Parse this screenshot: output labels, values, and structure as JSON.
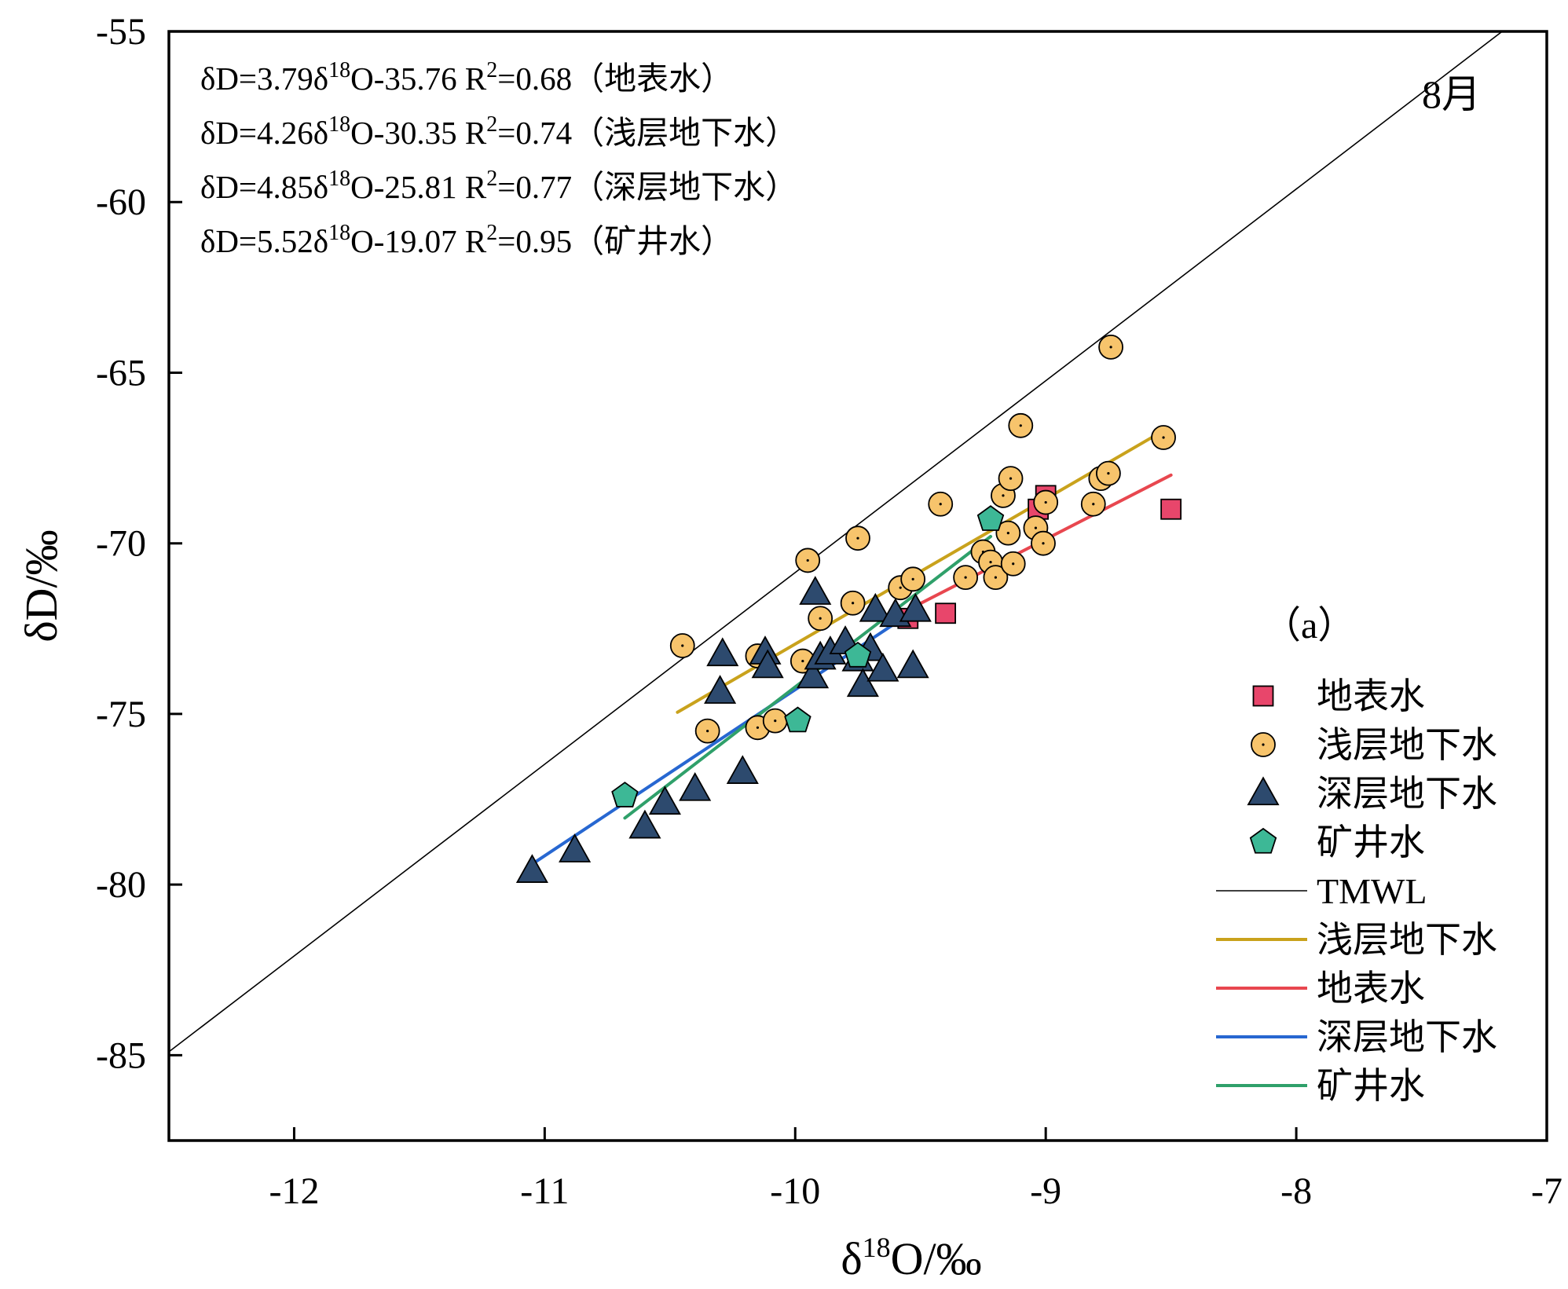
{
  "chart_data": {
    "type": "scatter",
    "title": "8月",
    "panel_label": "（a）",
    "xlabel": {
      "main": "δ",
      "sup": "18",
      "rest": "O/‰"
    },
    "ylabel": "δD/‰",
    "xlim": [
      -12.5,
      -7
    ],
    "ylim": [
      -87.5,
      -55
    ],
    "x_ticks": [
      -12,
      -11,
      -10,
      -9,
      -8,
      -7
    ],
    "y_ticks": [
      -55,
      -60,
      -65,
      -70,
      -75,
      -80,
      -85
    ],
    "x_tick_labels": [
      "-12",
      "-11",
      "-10",
      "-9",
      "-8",
      "-7"
    ],
    "y_tick_labels": [
      "-55",
      "-60",
      "-65",
      "-70",
      "-75",
      "-80",
      "-85"
    ],
    "equations": [
      {
        "pre": "δD=3.79δ",
        "sup1": "18",
        "mid": "O-35.76  R",
        "sup2": "2",
        "post": "=0.68（地表水）"
      },
      {
        "pre": "δD=4.26δ",
        "sup1": "18",
        "mid": "O-30.35  R",
        "sup2": "2",
        "post": "=0.74（浅层地下水）"
      },
      {
        "pre": "δD=4.85δ",
        "sup1": "18",
        "mid": "O-25.81  R",
        "sup2": "2",
        "post": "=0.77（深层地下水）"
      },
      {
        "pre": "δD=5.52δ",
        "sup1": "18",
        "mid": "O-19.07  R",
        "sup2": "2",
        "post": "=0.95（矿井水）"
      }
    ],
    "series": [
      {
        "name": "地表水",
        "marker": "square",
        "color": "#e8466b",
        "points": [
          [
            -9.55,
            -72.2
          ],
          [
            -9.4,
            -72.05
          ],
          [
            -9.03,
            -69.0
          ],
          [
            -9.0,
            -68.6
          ],
          [
            -8.5,
            -69.0
          ]
        ]
      },
      {
        "name": "浅层地下水",
        "marker": "circle",
        "color": "#f7c46c",
        "points": [
          [
            -10.45,
            -73.0
          ],
          [
            -10.35,
            -75.5
          ],
          [
            -10.15,
            -73.3
          ],
          [
            -10.15,
            -75.4
          ],
          [
            -10.08,
            -75.2
          ],
          [
            -9.97,
            -73.45
          ],
          [
            -9.95,
            -70.5
          ],
          [
            -9.9,
            -72.2
          ],
          [
            -9.77,
            -71.75
          ],
          [
            -9.75,
            -69.85
          ],
          [
            -9.58,
            -71.3
          ],
          [
            -9.53,
            -71.05
          ],
          [
            -9.42,
            -68.85
          ],
          [
            -9.32,
            -71.0
          ],
          [
            -9.25,
            -70.25
          ],
          [
            -9.22,
            -70.55
          ],
          [
            -9.2,
            -71.0
          ],
          [
            -9.17,
            -68.6
          ],
          [
            -9.15,
            -69.7
          ],
          [
            -9.14,
            -68.1
          ],
          [
            -9.13,
            -70.6
          ],
          [
            -9.1,
            -66.55
          ],
          [
            -9.04,
            -69.55
          ],
          [
            -9.01,
            -70.0
          ],
          [
            -9.0,
            -68.8
          ],
          [
            -8.81,
            -68.85
          ],
          [
            -8.78,
            -68.1
          ],
          [
            -8.75,
            -67.95
          ],
          [
            -8.74,
            -64.25
          ],
          [
            -8.53,
            -66.9
          ]
        ]
      },
      {
        "name": "深层地下水",
        "marker": "triangle",
        "color": "#2d4a6e",
        "points": [
          [
            -11.05,
            -79.6
          ],
          [
            -10.88,
            -79.0
          ],
          [
            -10.6,
            -78.3
          ],
          [
            -10.52,
            -77.6
          ],
          [
            -10.4,
            -77.2
          ],
          [
            -10.3,
            -74.35
          ],
          [
            -10.29,
            -73.25
          ],
          [
            -10.21,
            -76.7
          ],
          [
            -10.12,
            -73.2
          ],
          [
            -10.11,
            -73.6
          ],
          [
            -9.93,
            -73.9
          ],
          [
            -9.92,
            -71.45
          ],
          [
            -9.9,
            -73.35
          ],
          [
            -9.86,
            -73.2
          ],
          [
            -9.8,
            -72.9
          ],
          [
            -9.75,
            -73.4
          ],
          [
            -9.73,
            -74.15
          ],
          [
            -9.7,
            -73.1
          ],
          [
            -9.68,
            -71.95
          ],
          [
            -9.65,
            -73.7
          ],
          [
            -9.6,
            -72.1
          ],
          [
            -9.53,
            -73.6
          ],
          [
            -9.52,
            -71.95
          ]
        ]
      },
      {
        "name": "矿井水",
        "marker": "pentagon",
        "color": "#3db896",
        "points": [
          [
            -10.68,
            -77.4
          ],
          [
            -9.99,
            -75.2
          ],
          [
            -9.75,
            -73.3
          ],
          [
            -9.22,
            -69.3
          ]
        ]
      }
    ],
    "lines": [
      {
        "name": "TMWL",
        "color": "#000000",
        "width": 1.6,
        "x": [
          -12.5,
          -7.0
        ],
        "y": [
          -84.9,
          -54.0
        ]
      },
      {
        "name": "浅层地下水",
        "color": "#c9a21c",
        "width": 4,
        "x": [
          -10.47,
          -8.53
        ],
        "y": [
          -74.95,
          -66.7
        ]
      },
      {
        "name": "地表水",
        "color": "#e8474f",
        "width": 4,
        "x": [
          -9.55,
          -8.5
        ],
        "y": [
          -71.95,
          -68.0
        ]
      },
      {
        "name": "深层地下水",
        "color": "#2767d1",
        "width": 4,
        "x": [
          -11.05,
          -9.52
        ],
        "y": [
          -79.4,
          -71.95
        ]
      },
      {
        "name": "矿井水",
        "color": "#2fa06a",
        "width": 4,
        "x": [
          -10.68,
          -9.22
        ],
        "y": [
          -78.05,
          -69.8
        ]
      }
    ],
    "legend": {
      "position": "bottom-right",
      "entries": [
        {
          "label": "地表水",
          "kind": "marker",
          "marker": "square",
          "color": "#e8466b"
        },
        {
          "label": "浅层地下水",
          "kind": "marker",
          "marker": "circle",
          "color": "#f7c46c"
        },
        {
          "label": "深层地下水",
          "kind": "marker",
          "marker": "triangle",
          "color": "#2d4a6e"
        },
        {
          "label": "矿井水",
          "kind": "marker",
          "marker": "pentagon",
          "color": "#3db896"
        },
        {
          "label": "TMWL",
          "kind": "line",
          "color": "#000000",
          "width": 1.6
        },
        {
          "label": "浅层地下水",
          "kind": "line",
          "color": "#c9a21c",
          "width": 4
        },
        {
          "label": "地表水",
          "kind": "line",
          "color": "#e8474f",
          "width": 4
        },
        {
          "label": "深层地下水",
          "kind": "line",
          "color": "#2767d1",
          "width": 4
        },
        {
          "label": "矿井水",
          "kind": "line",
          "color": "#2fa06a",
          "width": 4
        }
      ]
    }
  }
}
